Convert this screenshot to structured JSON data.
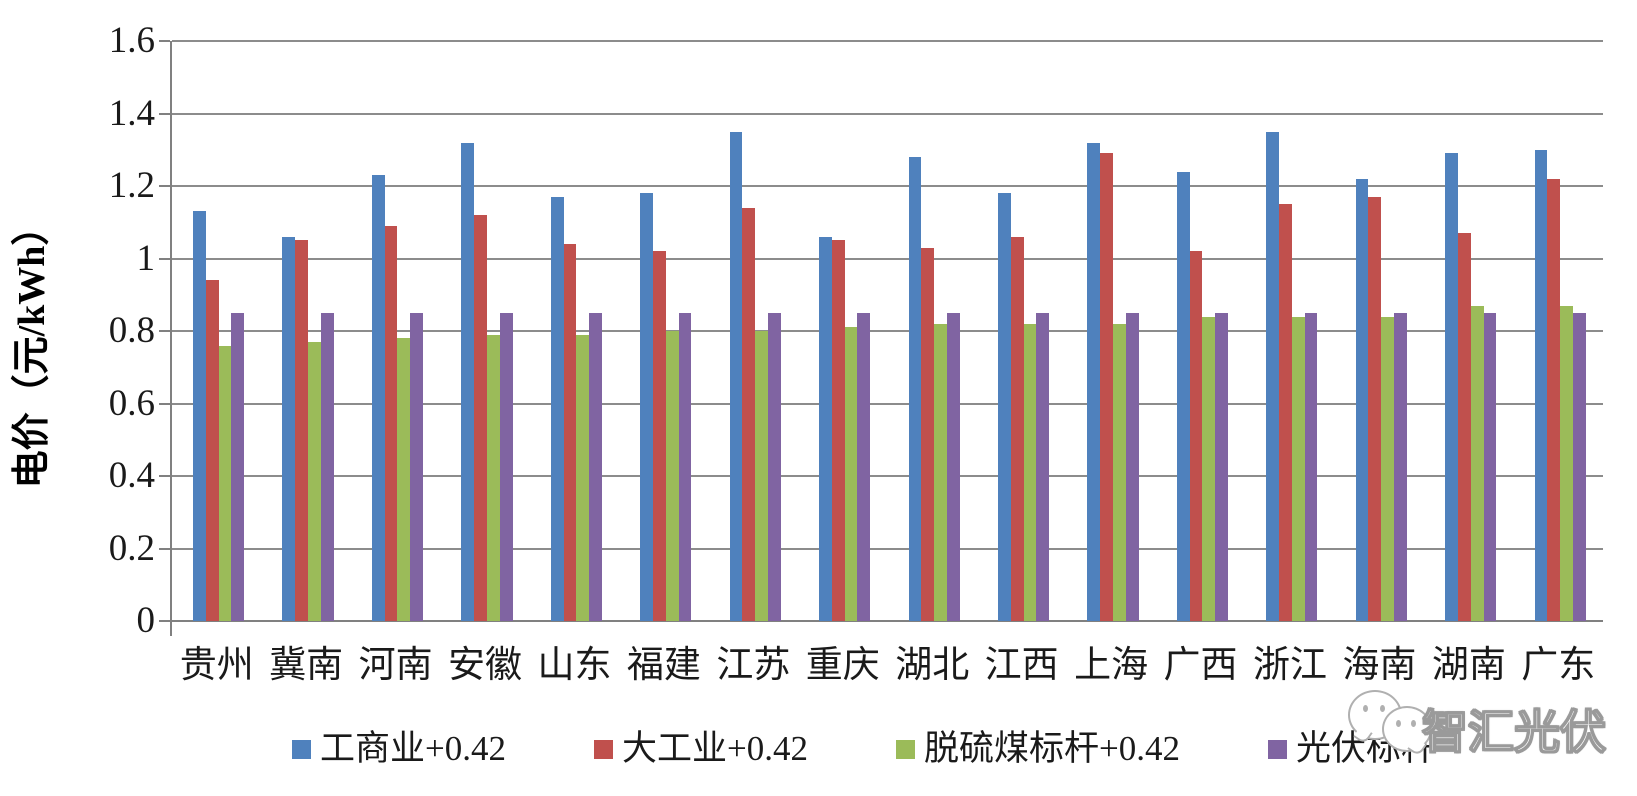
{
  "chart_data": {
    "type": "bar",
    "title": "",
    "xlabel": "",
    "ylabel": "电价（元/kWh）",
    "ylim": [
      0,
      1.6
    ],
    "ytick_step": 0.2,
    "yticks": [
      "0",
      "0.2",
      "0.4",
      "0.6",
      "0.8",
      "1",
      "1.2",
      "1.4",
      "1.6"
    ],
    "grid": true,
    "legend_position": "bottom",
    "categories": [
      "贵州",
      "冀南",
      "河南",
      "安徽",
      "山东",
      "福建",
      "江苏",
      "重庆",
      "湖北",
      "江西",
      "上海",
      "广西",
      "浙江",
      "海南",
      "湖南",
      "广东"
    ],
    "series": [
      {
        "name": "工商业+0.42",
        "color": "#4F81BD",
        "values": [
          1.13,
          1.06,
          1.23,
          1.32,
          1.17,
          1.18,
          1.35,
          1.06,
          1.28,
          1.18,
          1.32,
          1.24,
          1.35,
          1.22,
          1.29,
          1.3
        ]
      },
      {
        "name": "大工业+0.42",
        "color": "#C0504D",
        "values": [
          0.94,
          1.05,
          1.09,
          1.12,
          1.04,
          1.02,
          1.14,
          1.05,
          1.03,
          1.06,
          1.29,
          1.02,
          1.15,
          1.17,
          1.07,
          1.22
        ]
      },
      {
        "name": "脱硫煤标杆+0.42",
        "color": "#9BBB59",
        "values": [
          0.76,
          0.77,
          0.78,
          0.79,
          0.79,
          0.8,
          0.8,
          0.81,
          0.82,
          0.82,
          0.82,
          0.84,
          0.84,
          0.84,
          0.87,
          0.87
        ]
      },
      {
        "name": "光伏标杆",
        "color": "#8064A2",
        "values": [
          0.85,
          0.85,
          0.85,
          0.85,
          0.85,
          0.85,
          0.85,
          0.85,
          0.85,
          0.85,
          0.85,
          0.85,
          0.85,
          0.85,
          0.85,
          0.85
        ]
      }
    ]
  },
  "colors": {
    "background": "#FFFFFF",
    "gridline": "#8C8C8C",
    "axis": "#808080",
    "text": "#1A1A1A"
  },
  "watermark": {
    "text": "智汇光伏",
    "icon": "wechat-chat-bubbles-icon"
  }
}
